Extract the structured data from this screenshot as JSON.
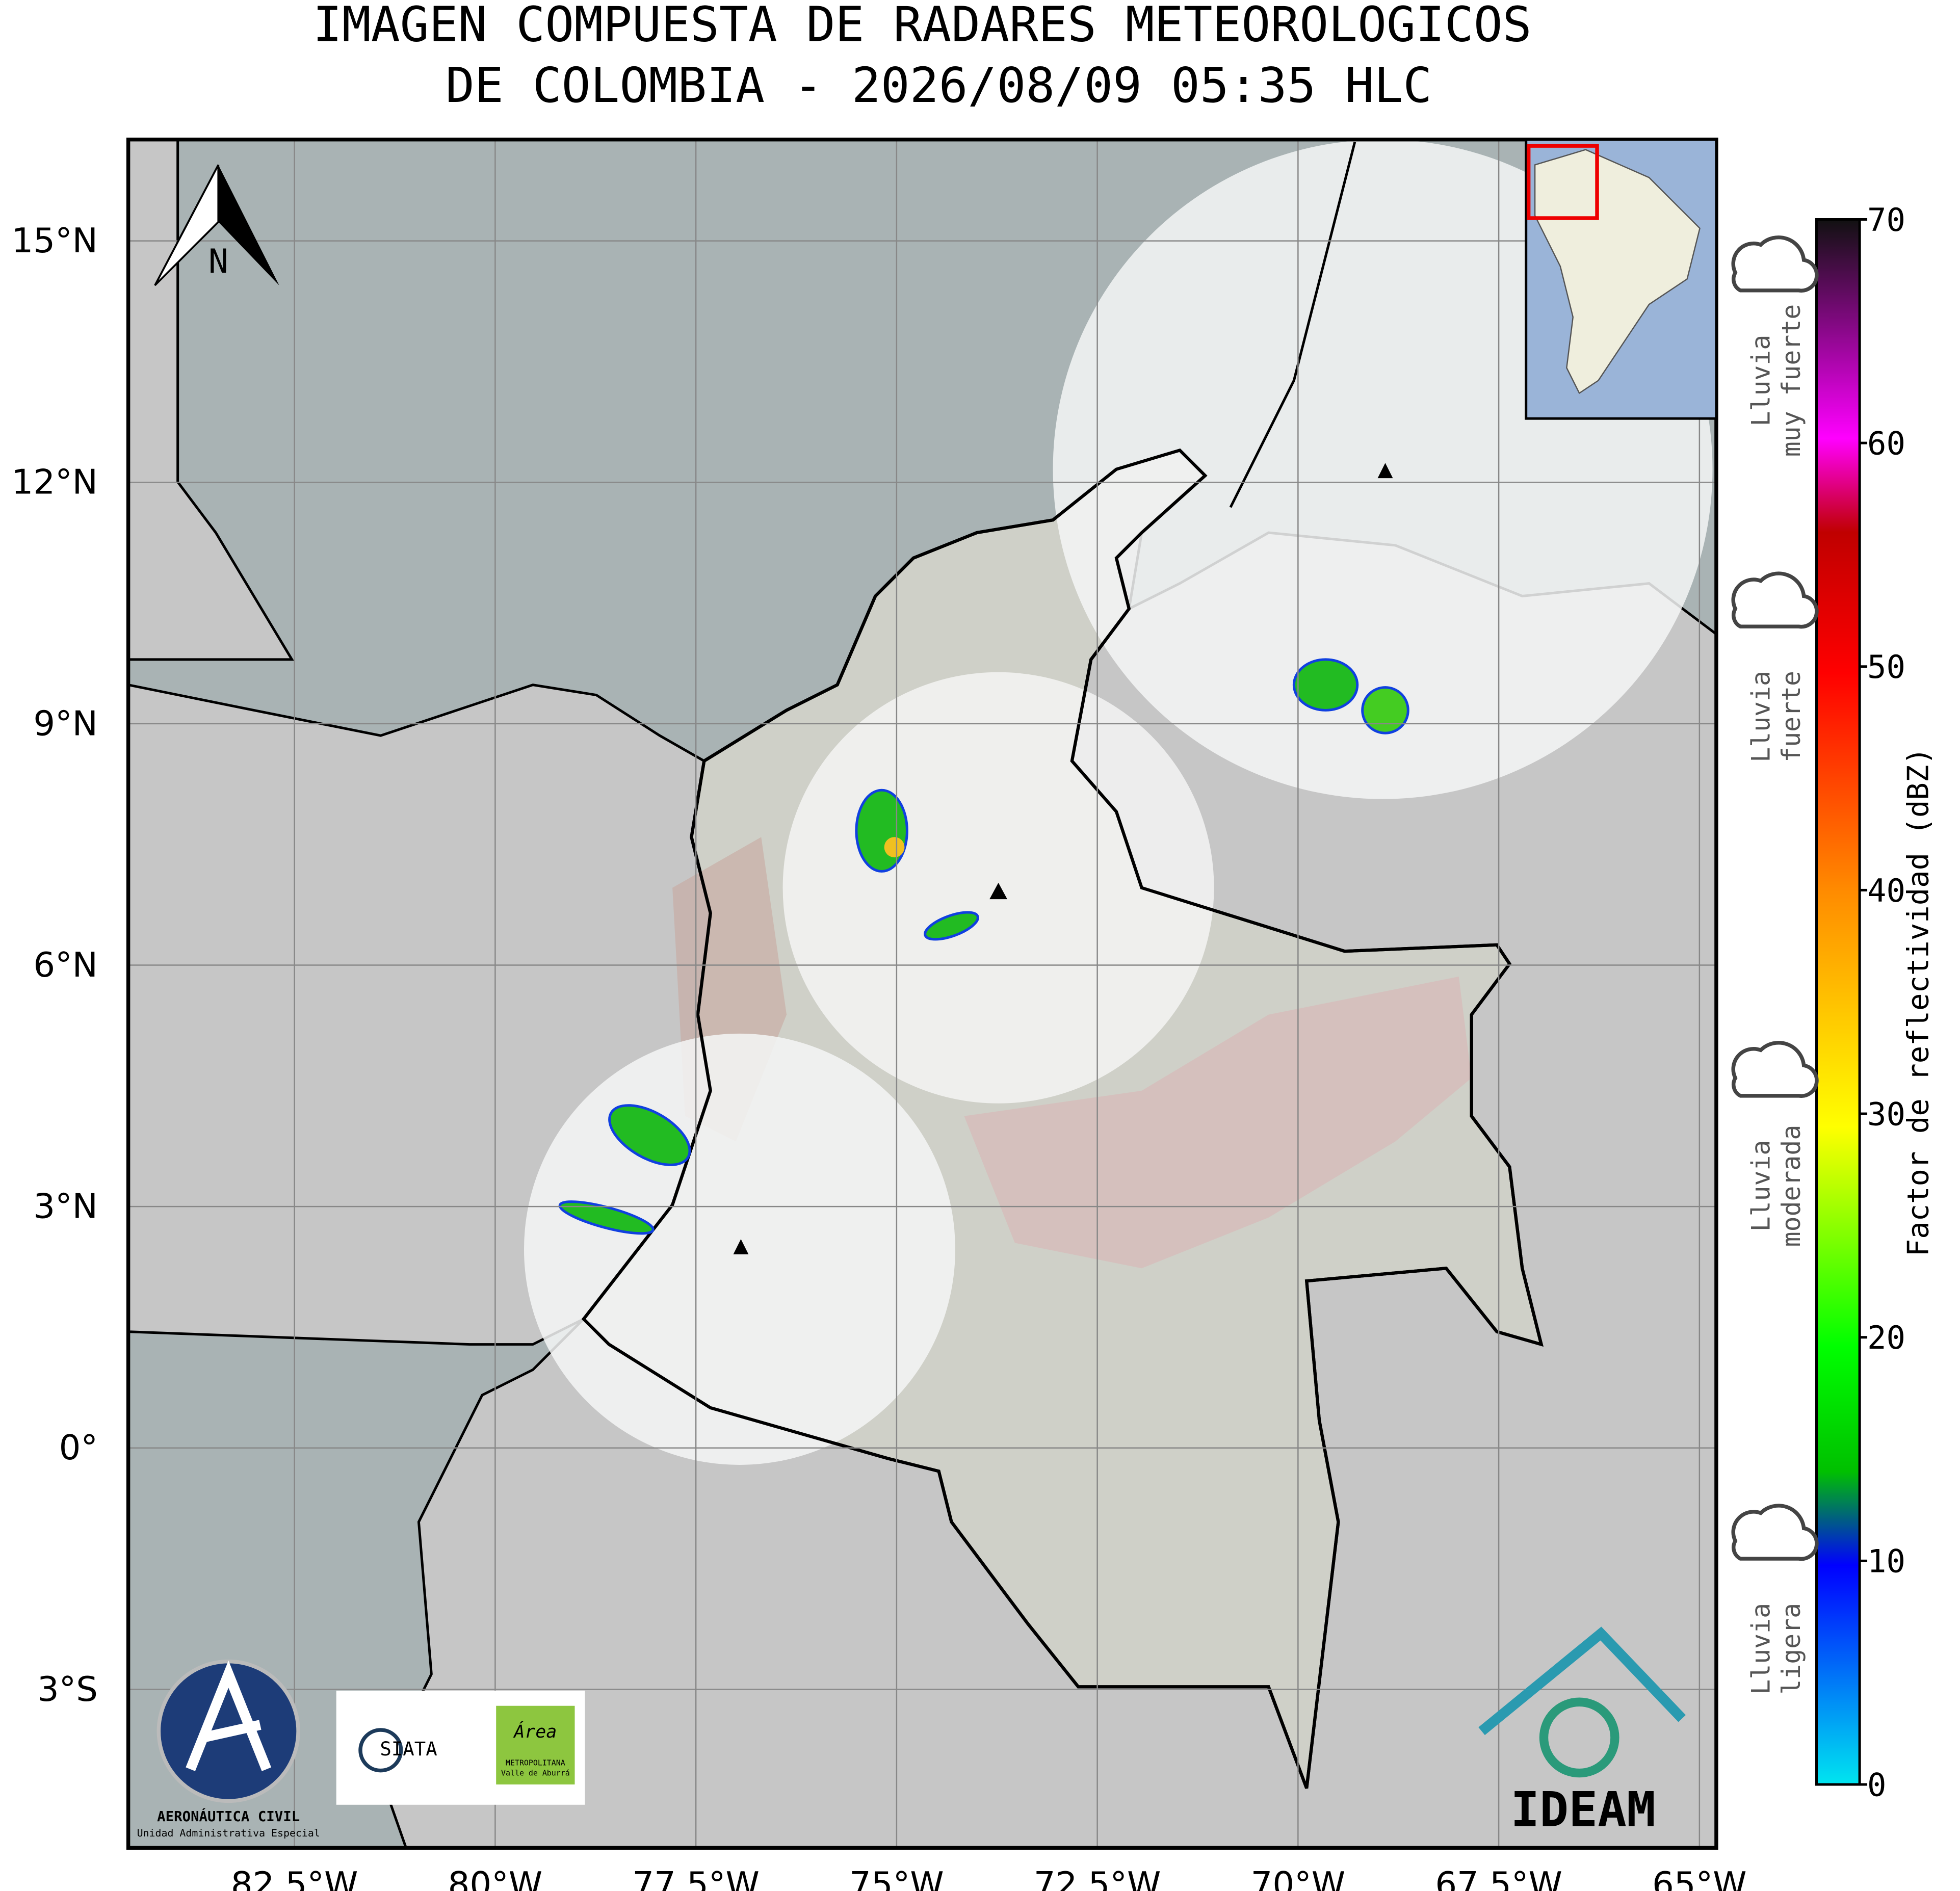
{
  "title": [
    "IMAGEN COMPUESTA DE RADARES METEOROLOGICOS",
    "DE COLOMBIA - 2026/08/09 05:35 HLC"
  ],
  "map": {
    "xlim": [
      -84.57,
      -64.79
    ],
    "ylim": [
      -4.97,
      16.26
    ],
    "xticks": [
      {
        "value": -82.5,
        "label": "82.5°W"
      },
      {
        "value": -80,
        "label": "80°W"
      },
      {
        "value": -77.5,
        "label": "77.5°W"
      },
      {
        "value": -75,
        "label": "75°W"
      },
      {
        "value": -72.5,
        "label": "72.5°W"
      },
      {
        "value": -70,
        "label": "70°W"
      },
      {
        "value": -67.5,
        "label": "67.5°W"
      },
      {
        "value": -65,
        "label": "65°W"
      }
    ],
    "yticks": [
      {
        "value": 15,
        "label": "15°N"
      },
      {
        "value": 12,
        "label": "12°N"
      },
      {
        "value": 9,
        "label": "9°N"
      },
      {
        "value": 6,
        "label": "6°N"
      },
      {
        "value": 3,
        "label": "3°N"
      },
      {
        "value": 0,
        "label": "0°"
      },
      {
        "value": -3,
        "label": "3°S"
      }
    ],
    "north": "N"
  },
  "colorbar": {
    "label": "Factor de reflectividad (dBZ)",
    "lim": [
      0,
      70
    ],
    "ticks": [
      0,
      10,
      20,
      30,
      40,
      50,
      60,
      70
    ]
  },
  "rain_legend": [
    [
      "Lluvia",
      "muy fuerte"
    ],
    [
      "Lluvia",
      "fuerte"
    ],
    [
      "Lluvia",
      "moderada"
    ],
    [
      "Lluvia",
      "ligera"
    ]
  ],
  "logos": {
    "aerocivil": "AERONÁUTICA CIVIL",
    "aerocivil_sub": "Unidad Administrativa Especial",
    "siata": "SIATA",
    "area": "Área",
    "area_sub1": "METROPOLITANA",
    "area_sub2": "Valle de Aburrá",
    "ideam": "IDEAM"
  }
}
